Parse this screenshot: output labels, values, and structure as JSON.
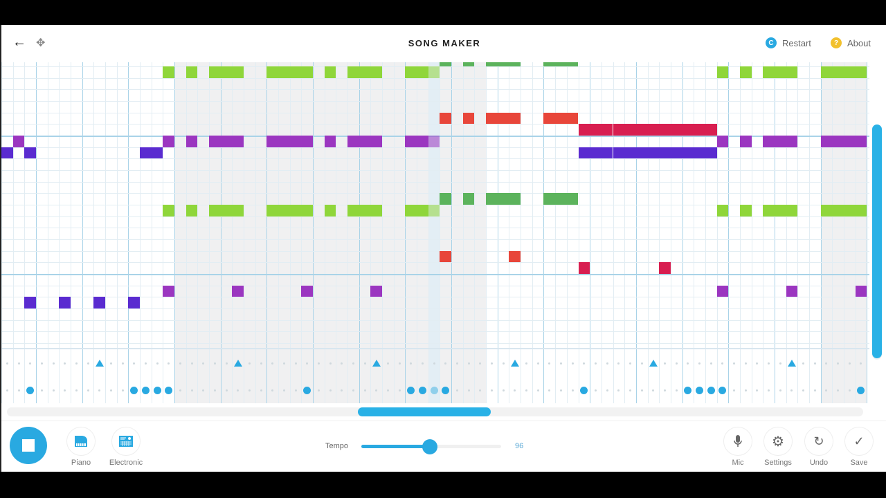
{
  "header": {
    "title": "SONG MAKER",
    "restart": "Restart",
    "about": "About",
    "restart_icon_letter": "C",
    "about_icon_letter": "?"
  },
  "colors": {
    "accent": "#29a9e1",
    "green_light": "#8fd63a",
    "green_dark": "#5cb35c",
    "red": "#e8463a",
    "crimson": "#d81e50",
    "purple": "#9b36c0",
    "indigo": "#5a2bd0",
    "restart": "#29a9e1",
    "about": "#f2c12e"
  },
  "song": {
    "columns": 75,
    "rows": 24,
    "playhead_column": 37,
    "shaded_ranges": [
      [
        15,
        42
      ],
      [
        71,
        75
      ]
    ],
    "notes": [
      {
        "row": -1,
        "col": 38,
        "len": 1,
        "color": "green_dark"
      },
      {
        "row": -1,
        "col": 40,
        "len": 1,
        "color": "green_dark"
      },
      {
        "row": -1,
        "col": 42,
        "len": 3,
        "color": "green_dark"
      },
      {
        "row": -1,
        "col": 47,
        "len": 3,
        "color": "green_dark"
      },
      {
        "row": 0,
        "col": 14,
        "len": 1,
        "color": "green_light"
      },
      {
        "row": 0,
        "col": 16,
        "len": 1,
        "color": "green_light"
      },
      {
        "row": 0,
        "col": 18,
        "len": 3,
        "color": "green_light"
      },
      {
        "row": 0,
        "col": 23,
        "len": 4,
        "color": "green_light"
      },
      {
        "row": 0,
        "col": 28,
        "len": 1,
        "color": "green_light"
      },
      {
        "row": 0,
        "col": 30,
        "len": 3,
        "color": "green_light"
      },
      {
        "row": 0,
        "col": 35,
        "len": 3,
        "color": "green_light"
      },
      {
        "row": 0,
        "col": 62,
        "len": 1,
        "color": "green_light"
      },
      {
        "row": 0,
        "col": 64,
        "len": 1,
        "color": "green_light"
      },
      {
        "row": 0,
        "col": 66,
        "len": 3,
        "color": "green_light"
      },
      {
        "row": 0,
        "col": 71,
        "len": 4,
        "color": "green_light"
      },
      {
        "row": 4,
        "col": 38,
        "len": 1,
        "color": "red"
      },
      {
        "row": 4,
        "col": 40,
        "len": 1,
        "color": "red"
      },
      {
        "row": 4,
        "col": 42,
        "len": 3,
        "color": "red"
      },
      {
        "row": 4,
        "col": 47,
        "len": 3,
        "color": "red"
      },
      {
        "row": 5,
        "col": 50,
        "len": 12,
        "color": "crimson"
      },
      {
        "row": 6,
        "col": 1,
        "len": 1,
        "color": "purple"
      },
      {
        "row": 6,
        "col": 14,
        "len": 1,
        "color": "purple"
      },
      {
        "row": 6,
        "col": 16,
        "len": 1,
        "color": "purple"
      },
      {
        "row": 6,
        "col": 18,
        "len": 3,
        "color": "purple"
      },
      {
        "row": 6,
        "col": 23,
        "len": 4,
        "color": "purple"
      },
      {
        "row": 6,
        "col": 28,
        "len": 1,
        "color": "purple"
      },
      {
        "row": 6,
        "col": 30,
        "len": 3,
        "color": "purple"
      },
      {
        "row": 6,
        "col": 35,
        "len": 3,
        "color": "purple"
      },
      {
        "row": 6,
        "col": 62,
        "len": 1,
        "color": "purple"
      },
      {
        "row": 6,
        "col": 64,
        "len": 1,
        "color": "purple"
      },
      {
        "row": 6,
        "col": 66,
        "len": 3,
        "color": "purple"
      },
      {
        "row": 6,
        "col": 71,
        "len": 4,
        "color": "purple"
      },
      {
        "row": 7,
        "col": 0,
        "len": 1,
        "color": "indigo"
      },
      {
        "row": 7,
        "col": 2,
        "len": 1,
        "color": "indigo"
      },
      {
        "row": 7,
        "col": 12,
        "len": 2,
        "color": "indigo"
      },
      {
        "row": 7,
        "col": 50,
        "len": 12,
        "color": "indigo"
      },
      {
        "row": 11,
        "col": 38,
        "len": 1,
        "color": "green_dark"
      },
      {
        "row": 11,
        "col": 40,
        "len": 1,
        "color": "green_dark"
      },
      {
        "row": 11,
        "col": 42,
        "len": 3,
        "color": "green_dark"
      },
      {
        "row": 11,
        "col": 47,
        "len": 3,
        "color": "green_dark"
      },
      {
        "row": 12,
        "col": 14,
        "len": 1,
        "color": "green_light"
      },
      {
        "row": 12,
        "col": 16,
        "len": 1,
        "color": "green_light"
      },
      {
        "row": 12,
        "col": 18,
        "len": 3,
        "color": "green_light"
      },
      {
        "row": 12,
        "col": 23,
        "len": 4,
        "color": "green_light"
      },
      {
        "row": 12,
        "col": 28,
        "len": 1,
        "color": "green_light"
      },
      {
        "row": 12,
        "col": 30,
        "len": 3,
        "color": "green_light"
      },
      {
        "row": 12,
        "col": 35,
        "len": 3,
        "color": "green_light"
      },
      {
        "row": 12,
        "col": 62,
        "len": 1,
        "color": "green_light"
      },
      {
        "row": 12,
        "col": 64,
        "len": 1,
        "color": "green_light"
      },
      {
        "row": 12,
        "col": 66,
        "len": 3,
        "color": "green_light"
      },
      {
        "row": 12,
        "col": 71,
        "len": 4,
        "color": "green_light"
      },
      {
        "row": 16,
        "col": 38,
        "len": 1,
        "color": "red"
      },
      {
        "row": 16,
        "col": 44,
        "len": 1,
        "color": "red"
      },
      {
        "row": 17,
        "col": 50,
        "len": 1,
        "color": "crimson"
      },
      {
        "row": 17,
        "col": 57,
        "len": 1,
        "color": "crimson"
      },
      {
        "row": 19,
        "col": 14,
        "len": 1,
        "color": "purple"
      },
      {
        "row": 19,
        "col": 20,
        "len": 1,
        "color": "purple"
      },
      {
        "row": 19,
        "col": 26,
        "len": 1,
        "color": "purple"
      },
      {
        "row": 19,
        "col": 32,
        "len": 1,
        "color": "purple"
      },
      {
        "row": 19,
        "col": 62,
        "len": 1,
        "color": "purple"
      },
      {
        "row": 19,
        "col": 68,
        "len": 1,
        "color": "purple"
      },
      {
        "row": 19,
        "col": 74,
        "len": 1,
        "color": "purple"
      },
      {
        "row": 20,
        "col": 2,
        "len": 1,
        "color": "indigo"
      },
      {
        "row": 20,
        "col": 5,
        "len": 1,
        "color": "indigo"
      },
      {
        "row": 20,
        "col": 8,
        "len": 1,
        "color": "indigo"
      },
      {
        "row": 20,
        "col": 11,
        "len": 1,
        "color": "indigo"
      }
    ],
    "percussion": {
      "triangles": [
        8,
        20,
        32,
        44,
        56,
        68
      ],
      "circles": [
        2,
        11,
        12,
        13,
        14,
        26,
        35,
        36,
        37,
        38,
        50,
        59,
        60,
        61,
        62,
        74
      ]
    }
  },
  "toolbar": {
    "instrument1": "Piano",
    "instrument2": "Electronic",
    "tempo_label": "Tempo",
    "tempo_value": "96",
    "tempo_fraction": 0.49,
    "mic": "Mic",
    "settings": "Settings",
    "undo": "Undo",
    "save": "Save"
  }
}
